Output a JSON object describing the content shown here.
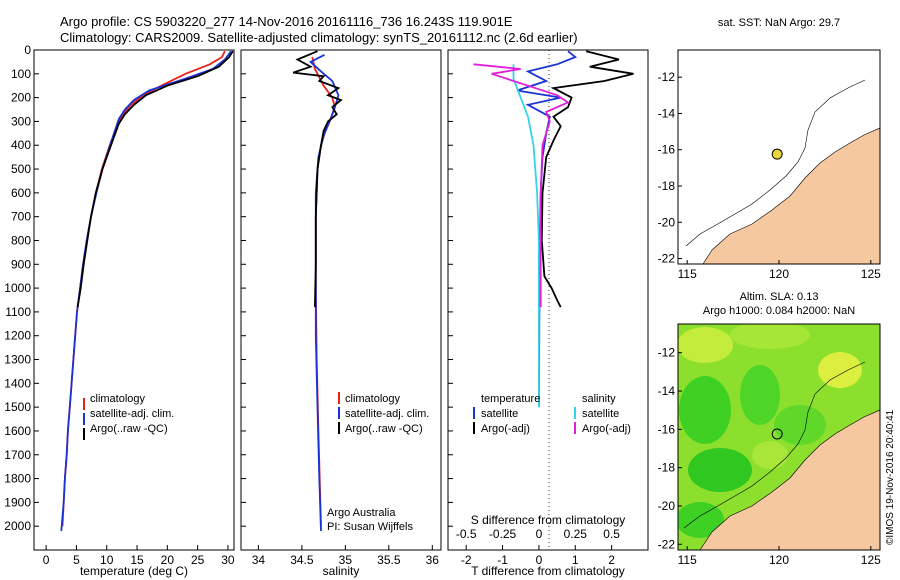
{
  "header": {
    "title_line1": "Argo profile: CS 5903220_277 14-Nov-2016 20161116_736 16.243S 119.901E",
    "title_line2": "Climatology: CARS2009. Satellite-adjusted climatology: synTS_20161112.nc (2.6d earlier)"
  },
  "colors": {
    "clim": "#e8221a",
    "sat": "#1a33d6",
    "argo": "#000000",
    "cyan": "#33d4e8",
    "magenta": "#e020d8",
    "land": "#f5c8a0",
    "map_green": "#33cc22"
  },
  "chart_data": [
    {
      "type": "line",
      "name": "temperature-profile",
      "xlabel": "temperature (deg C)",
      "xlim": [
        -2,
        31
      ],
      "ylim": [
        0,
        2100
      ],
      "xticks": [
        0,
        5,
        10,
        15,
        20,
        25,
        30
      ],
      "yticks": [
        0,
        100,
        200,
        300,
        400,
        500,
        600,
        700,
        800,
        900,
        1000,
        1100,
        1200,
        1300,
        1400,
        1500,
        1600,
        1700,
        1800,
        1900,
        2000
      ],
      "legend": [
        "climatology",
        "satellite-adj. clim.",
        "Argo(..raw -QC)"
      ],
      "series": [
        {
          "name": "climatology",
          "color": "clim",
          "points": [
            [
              29.5,
              5
            ],
            [
              29,
              30
            ],
            [
              27,
              60
            ],
            [
              23,
              100
            ],
            [
              19,
              150
            ],
            [
              16,
              190
            ],
            [
              14,
              230
            ],
            [
              13,
              260
            ],
            [
              12,
              300
            ],
            [
              10.5,
              400
            ],
            [
              9.2,
              500
            ],
            [
              8.2,
              600
            ],
            [
              7.4,
              700
            ],
            [
              6.7,
              800
            ],
            [
              6.1,
              900
            ],
            [
              5.6,
              1000
            ],
            [
              5.1,
              1100
            ],
            [
              4.8,
              1200
            ],
            [
              4.5,
              1300
            ],
            [
              4.2,
              1400
            ],
            [
              3.9,
              1500
            ],
            [
              3.6,
              1600
            ],
            [
              3.4,
              1700
            ],
            [
              3.1,
              1800
            ],
            [
              2.9,
              1900
            ],
            [
              2.7,
              2000
            ]
          ]
        },
        {
          "name": "satellite-adj. clim.",
          "color": "sat",
          "points": [
            [
              30.5,
              5
            ],
            [
              29.5,
              40
            ],
            [
              27.5,
              80
            ],
            [
              23,
              120
            ],
            [
              17,
              170
            ],
            [
              14.5,
              210
            ],
            [
              13,
              250
            ],
            [
              12,
              290
            ],
            [
              10.8,
              380
            ],
            [
              9.3,
              500
            ],
            [
              8.3,
              600
            ],
            [
              7.4,
              700
            ],
            [
              6.7,
              800
            ],
            [
              6.1,
              900
            ],
            [
              5.6,
              1000
            ],
            [
              5.1,
              1100
            ],
            [
              4.8,
              1200
            ],
            [
              4.5,
              1300
            ],
            [
              4.2,
              1400
            ],
            [
              3.9,
              1500
            ],
            [
              3.6,
              1600
            ],
            [
              3.4,
              1700
            ],
            [
              3.1,
              1800
            ],
            [
              2.9,
              1900
            ],
            [
              2.5,
              2020
            ]
          ]
        },
        {
          "name": "Argo",
          "color": "argo",
          "points": [
            [
              30.8,
              5
            ],
            [
              30.2,
              30
            ],
            [
              28.5,
              70
            ],
            [
              25,
              110
            ],
            [
              20,
              150
            ],
            [
              16.5,
              190
            ],
            [
              14.5,
              230
            ],
            [
              13,
              270
            ],
            [
              12,
              310
            ],
            [
              10.7,
              400
            ],
            [
              9.3,
              500
            ],
            [
              8.2,
              600
            ],
            [
              7.4,
              700
            ],
            [
              6.8,
              800
            ],
            [
              6.2,
              900
            ],
            [
              5.7,
              1000
            ],
            [
              5.2,
              1080
            ]
          ]
        }
      ]
    },
    {
      "type": "line",
      "name": "salinity-profile",
      "xlabel": "salinity",
      "xlim": [
        33.8,
        36.1
      ],
      "ylim": [
        0,
        2100
      ],
      "xticks": [
        34,
        34.5,
        35,
        35.5,
        36
      ],
      "legend": [
        "climatology",
        "satellite-adj. clim.",
        "Argo(..raw -QC)"
      ],
      "annotation": [
        "Argo Australia",
        "PI: Susan Wijffels"
      ],
      "series": [
        {
          "name": "climatology",
          "color": "clim",
          "points": [
            [
              34.62,
              30
            ],
            [
              34.65,
              80
            ],
            [
              34.75,
              150
            ],
            [
              34.85,
              200
            ],
            [
              34.88,
              240
            ],
            [
              34.84,
              280
            ],
            [
              34.78,
              330
            ],
            [
              34.72,
              400
            ],
            [
              34.68,
              500
            ],
            [
              34.66,
              700
            ],
            [
              34.66,
              1000
            ],
            [
              34.67,
              1300
            ],
            [
              34.69,
              1600
            ],
            [
              34.72,
              2000
            ]
          ]
        },
        {
          "name": "satellite-adj. clim.",
          "color": "sat",
          "points": [
            [
              34.76,
              20
            ],
            [
              34.6,
              50
            ],
            [
              34.72,
              90
            ],
            [
              34.85,
              130
            ],
            [
              34.92,
              190
            ],
            [
              34.88,
              240
            ],
            [
              34.82,
              300
            ],
            [
              34.75,
              360
            ],
            [
              34.69,
              450
            ],
            [
              34.66,
              600
            ],
            [
              34.66,
              900
            ],
            [
              34.66,
              1200
            ],
            [
              34.68,
              1500
            ],
            [
              34.7,
              1800
            ],
            [
              34.72,
              2020
            ]
          ]
        },
        {
          "name": "Argo",
          "color": "argo",
          "points": [
            [
              34.68,
              5
            ],
            [
              34.45,
              40
            ],
            [
              34.6,
              70
            ],
            [
              34.4,
              95
            ],
            [
              34.75,
              110
            ],
            [
              34.7,
              130
            ],
            [
              34.92,
              160
            ],
            [
              34.8,
              190
            ],
            [
              34.95,
              210
            ],
            [
              34.85,
              240
            ],
            [
              34.9,
              270
            ],
            [
              34.8,
              300
            ],
            [
              34.75,
              340
            ],
            [
              34.72,
              400
            ],
            [
              34.68,
              500
            ],
            [
              34.66,
              700
            ],
            [
              34.66,
              900
            ],
            [
              34.65,
              1080
            ]
          ]
        }
      ]
    },
    {
      "type": "line",
      "name": "difference-profile",
      "xlabel": "T difference from climatology",
      "top_xlabel": "S difference from climatology",
      "xlim": [
        -2.5,
        3
      ],
      "ylim": [
        0,
        2100
      ],
      "xticks": [
        -2,
        -1,
        0,
        1,
        2
      ],
      "top_xticks": [
        -0.5,
        -0.25,
        0,
        0.25,
        0.5
      ],
      "legend_left_title": "temperature",
      "legend_right_title": "salinity",
      "legend": [
        "satellite",
        "Argo(-adj)",
        "satellite",
        "Argo(-adj)"
      ],
      "series": [
        {
          "name": "T satellite",
          "color": "sat",
          "points": [
            [
              0.8,
              5
            ],
            [
              1.0,
              30
            ],
            [
              0.5,
              60
            ],
            [
              -0.3,
              90
            ],
            [
              0.2,
              130
            ],
            [
              -0.6,
              170
            ],
            [
              0.6,
              200
            ],
            [
              -0.3,
              230
            ],
            [
              0.3,
              280
            ],
            [
              0.2,
              350
            ],
            [
              0.1,
              450
            ],
            [
              0.05,
              600
            ],
            [
              0.02,
              900
            ],
            [
              0,
              1500
            ]
          ]
        },
        {
          "name": "T Argo",
          "color": "argo",
          "points": [
            [
              1.3,
              5
            ],
            [
              2.2,
              40
            ],
            [
              1.4,
              70
            ],
            [
              2.6,
              100
            ],
            [
              1.8,
              130
            ],
            [
              0.4,
              160
            ],
            [
              0.9,
              200
            ],
            [
              0.8,
              240
            ],
            [
              0.4,
              280
            ],
            [
              0.6,
              320
            ],
            [
              0.4,
              380
            ],
            [
              0.2,
              450
            ],
            [
              0.1,
              600
            ],
            [
              0.08,
              800
            ],
            [
              0.15,
              950
            ],
            [
              0.35,
              1000
            ],
            [
              0.5,
              1050
            ],
            [
              0.6,
              1080
            ]
          ]
        },
        {
          "name": "S satellite",
          "color": "cyan",
          "points": [
            [
              -0.7,
              60
            ],
            [
              -0.7,
              120
            ],
            [
              -0.5,
              200
            ],
            [
              -0.3,
              280
            ],
            [
              -0.15,
              400
            ],
            [
              -0.05,
              600
            ],
            [
              0,
              800
            ],
            [
              0,
              1000
            ],
            [
              0,
              1500
            ]
          ]
        },
        {
          "name": "S Argo",
          "color": "magenta",
          "points": [
            [
              -1.8,
              60
            ],
            [
              -0.5,
              80
            ],
            [
              -1.3,
              100
            ],
            [
              -0.3,
              150
            ],
            [
              0.5,
              190
            ],
            [
              0.8,
              220
            ],
            [
              0.2,
              260
            ],
            [
              0.3,
              300
            ],
            [
              0.1,
              400
            ],
            [
              0.05,
              600
            ],
            [
              0.05,
              900
            ],
            [
              0.05,
              1080
            ]
          ]
        }
      ]
    },
    {
      "type": "scatter",
      "name": "sst-map",
      "title": "sat. SST: NaN Argo: 29.7",
      "xlim": [
        114.5,
        125.5
      ],
      "ylim": [
        -22.3,
        -10.5
      ],
      "xticks": [
        115,
        120,
        125
      ],
      "yticks": [
        -12,
        -14,
        -16,
        -18,
        -20,
        -22
      ],
      "marker": {
        "lon": 119.901,
        "lat": -16.243
      }
    },
    {
      "type": "heatmap",
      "name": "sla-map",
      "title_line1": "Altim. SLA: 0.13",
      "title_line2": "Argo h1000: 0.084 h2000: NaN",
      "xlim": [
        114.5,
        125.5
      ],
      "ylim": [
        -22.3,
        -10.5
      ],
      "xticks": [
        115,
        120,
        125
      ],
      "yticks": [
        -12,
        -14,
        -16,
        -18,
        -20,
        -22
      ],
      "marker": {
        "lon": 119.901,
        "lat": -16.243
      },
      "credit": "©IMOS 19-Nov-2016 20:40:41"
    }
  ]
}
